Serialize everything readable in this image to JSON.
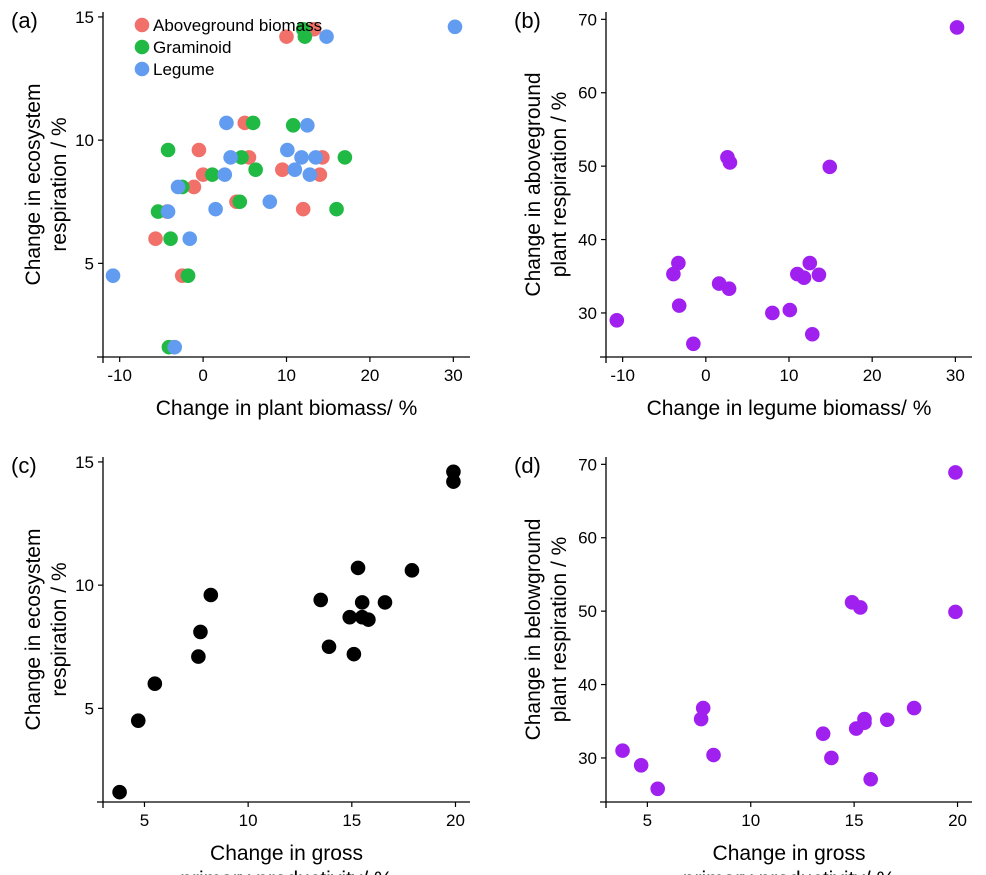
{
  "figure": {
    "panels": [
      "(a)",
      "(b)",
      "(c)",
      "(d)"
    ]
  },
  "chart_data": [
    {
      "panel_label": "(a)",
      "type": "scatter",
      "xlabel": "Change in plant biomass/ %",
      "ylabel": [
        "Change in ecosystem",
        "respiration / %"
      ],
      "xlim": [
        -12,
        32
      ],
      "ylim": [
        1.2,
        15.2
      ],
      "xticks": [
        -10,
        0,
        10,
        20,
        30
      ],
      "yticks": [
        5,
        10,
        15
      ],
      "grid": false,
      "legend": "top-left",
      "series": [
        {
          "name": "Aboveground biomass",
          "color": "#f17069",
          "points": [
            [
              -5.7,
              6.0
            ],
            [
              -2.5,
              4.5
            ],
            [
              -3.5,
              1.6
            ],
            [
              -4.3,
              7.1
            ],
            [
              -1.1,
              8.1
            ],
            [
              -0.5,
              9.6
            ],
            [
              0.0,
              8.6
            ],
            [
              4.0,
              7.5
            ],
            [
              5.0,
              10.7
            ],
            [
              5.5,
              9.3
            ],
            [
              9.5,
              8.8
            ],
            [
              10.0,
              14.2
            ],
            [
              12.0,
              7.2
            ],
            [
              13.3,
              14.5
            ],
            [
              14.0,
              8.6
            ],
            [
              14.3,
              9.3
            ]
          ]
        },
        {
          "name": "Graminoid",
          "color": "#1fb944",
          "points": [
            [
              -5.4,
              7.1
            ],
            [
              -4.2,
              9.6
            ],
            [
              -4.1,
              1.6
            ],
            [
              -3.9,
              6.0
            ],
            [
              -2.5,
              8.1
            ],
            [
              -1.8,
              4.5
            ],
            [
              1.1,
              8.6
            ],
            [
              4.4,
              7.5
            ],
            [
              4.6,
              9.3
            ],
            [
              6.0,
              10.7
            ],
            [
              6.3,
              8.8
            ],
            [
              10.8,
              10.6
            ],
            [
              12.0,
              14.5
            ],
            [
              12.2,
              14.2
            ],
            [
              16.0,
              7.2
            ],
            [
              17.0,
              9.3
            ]
          ]
        },
        {
          "name": "Legume",
          "color": "#619cf0",
          "points": [
            [
              -10.8,
              4.5
            ],
            [
              -4.2,
              7.1
            ],
            [
              -3.4,
              1.6
            ],
            [
              -3.0,
              8.1
            ],
            [
              -1.6,
              6.0
            ],
            [
              1.5,
              7.2
            ],
            [
              2.6,
              8.6
            ],
            [
              2.8,
              10.7
            ],
            [
              3.3,
              9.3
            ],
            [
              8.0,
              7.5
            ],
            [
              10.1,
              9.6
            ],
            [
              11.0,
              8.8
            ],
            [
              11.8,
              9.3
            ],
            [
              12.5,
              10.6
            ],
            [
              12.8,
              8.6
            ],
            [
              13.5,
              9.3
            ],
            [
              14.8,
              14.2
            ],
            [
              30.2,
              14.6
            ]
          ]
        }
      ]
    },
    {
      "panel_label": "(b)",
      "type": "scatter",
      "xlabel": "Change in legume biomass/ %",
      "ylabel": [
        "Change in aboveground",
        "plant respiration / %"
      ],
      "xlim": [
        -12,
        32
      ],
      "ylim": [
        24,
        71
      ],
      "xticks": [
        -10,
        0,
        10,
        20,
        30
      ],
      "yticks": [
        30,
        40,
        50,
        60,
        70
      ],
      "grid": false,
      "series": [
        {
          "color": "#a020f0",
          "points": [
            [
              -10.7,
              29.0
            ],
            [
              -3.9,
              35.3
            ],
            [
              -3.3,
              36.8
            ],
            [
              -3.2,
              31.0
            ],
            [
              -1.5,
              25.8
            ],
            [
              1.6,
              34.0
            ],
            [
              2.6,
              51.2
            ],
            [
              2.9,
              50.5
            ],
            [
              2.8,
              33.3
            ],
            [
              8.0,
              30.0
            ],
            [
              10.1,
              30.4
            ],
            [
              11.0,
              35.3
            ],
            [
              11.8,
              34.8
            ],
            [
              12.5,
              36.8
            ],
            [
              12.8,
              27.1
            ],
            [
              13.6,
              35.2
            ],
            [
              14.9,
              49.9
            ],
            [
              30.2,
              68.9
            ]
          ]
        }
      ]
    },
    {
      "panel_label": "(c)",
      "type": "scatter",
      "xlabel": [
        "Change in gross",
        "primary productivity/ %"
      ],
      "ylabel": [
        "Change in ecosystem",
        "respiration / %"
      ],
      "xlim": [
        3.0,
        20.7
      ],
      "ylim": [
        1.2,
        15.2
      ],
      "xticks": [
        5,
        10,
        15,
        20
      ],
      "yticks": [
        5,
        10,
        15
      ],
      "grid": false,
      "series": [
        {
          "color": "#000000",
          "points": [
            [
              3.8,
              1.6
            ],
            [
              4.7,
              4.5
            ],
            [
              5.5,
              6.0
            ],
            [
              7.6,
              7.1
            ],
            [
              7.7,
              8.1
            ],
            [
              8.2,
              9.6
            ],
            [
              13.5,
              9.4
            ],
            [
              13.9,
              7.5
            ],
            [
              14.9,
              8.7
            ],
            [
              15.1,
              7.2
            ],
            [
              15.3,
              10.7
            ],
            [
              15.5,
              9.3
            ],
            [
              15.5,
              8.7
            ],
            [
              15.8,
              8.6
            ],
            [
              16.6,
              9.3
            ],
            [
              17.9,
              10.6
            ],
            [
              19.9,
              14.6
            ],
            [
              19.9,
              14.2
            ]
          ]
        }
      ]
    },
    {
      "panel_label": "(d)",
      "type": "scatter",
      "xlabel": [
        "Change in gross",
        "primary productivity/ %"
      ],
      "ylabel": [
        "Change in belowground",
        "plant respiration / %"
      ],
      "xlim": [
        3.0,
        20.7
      ],
      "ylim": [
        24,
        71
      ],
      "xticks": [
        5,
        10,
        15,
        20
      ],
      "yticks": [
        30,
        40,
        50,
        60,
        70
      ],
      "grid": false,
      "series": [
        {
          "color": "#a020f0",
          "points": [
            [
              3.8,
              31.0
            ],
            [
              4.7,
              29.0
            ],
            [
              5.5,
              25.8
            ],
            [
              7.6,
              35.3
            ],
            [
              7.7,
              36.8
            ],
            [
              8.2,
              30.4
            ],
            [
              13.5,
              33.3
            ],
            [
              13.9,
              30.0
            ],
            [
              14.9,
              51.2
            ],
            [
              15.1,
              34.0
            ],
            [
              15.3,
              50.5
            ],
            [
              15.5,
              35.3
            ],
            [
              15.5,
              34.8
            ],
            [
              15.8,
              27.1
            ],
            [
              16.6,
              35.2
            ],
            [
              17.9,
              36.8
            ],
            [
              19.9,
              68.9
            ],
            [
              19.9,
              49.9
            ]
          ]
        }
      ]
    }
  ]
}
